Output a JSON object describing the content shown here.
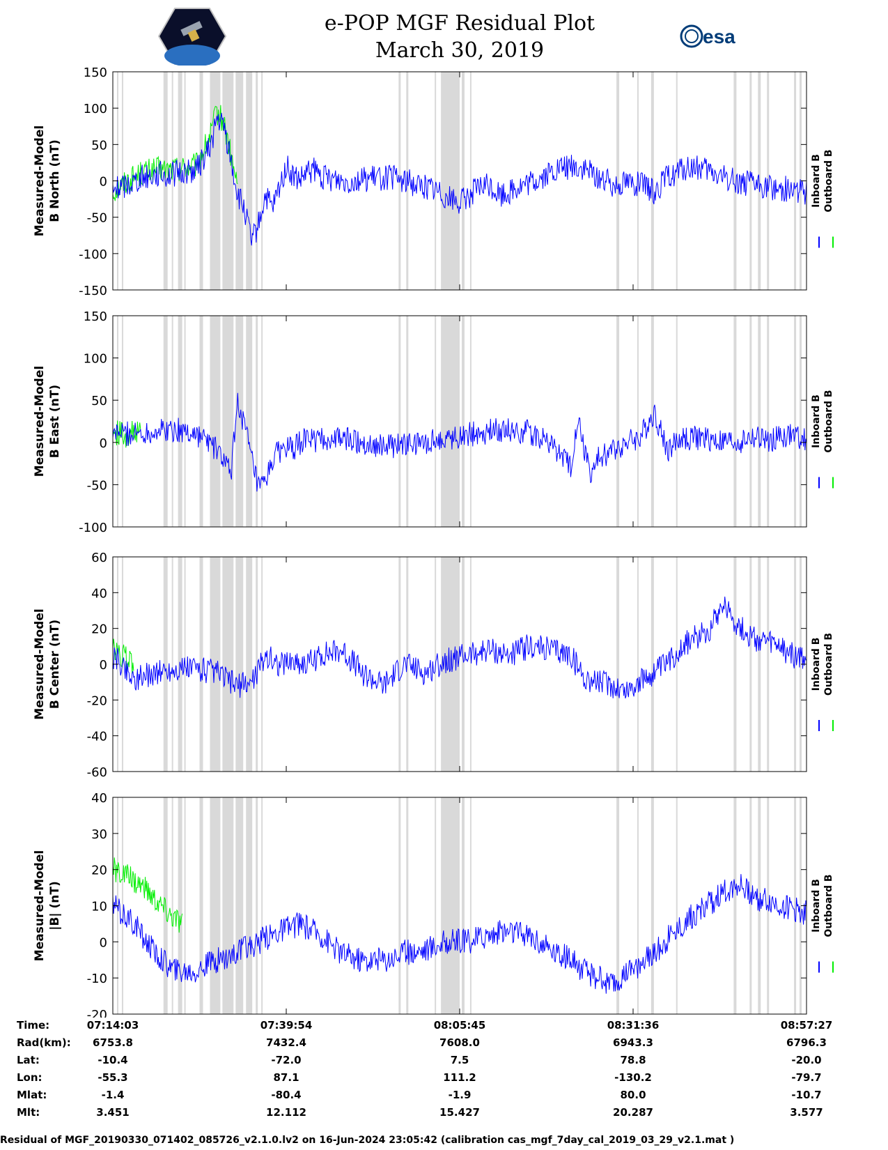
{
  "title": "e-POP MGF Residual Plot",
  "subtitle": "March 30, 2019",
  "colors": {
    "inboard": "#0000ff",
    "outboard": "#00ee00",
    "gap": "#d9d9d9"
  },
  "logos": {
    "left": "cassiope-mission-logo",
    "right": "esa-logo",
    "esa_text": "esa"
  },
  "chart_data": [
    {
      "type": "line",
      "ylabel_line1": "Measured-Model",
      "ylabel_line2": "B North (nT)",
      "ylim": [
        -150,
        150
      ],
      "yticks": [
        "150",
        "100",
        "50",
        "0",
        "-50",
        "-100",
        "-150"
      ],
      "legend": [
        "Inboard B",
        "Outboard B"
      ],
      "series": [
        {
          "name": "Inboard B",
          "color": "#0000ff",
          "x": [
            0,
            2,
            4,
            6,
            8,
            10,
            12,
            13,
            14,
            15,
            16,
            17,
            18,
            19,
            20,
            21,
            22,
            23,
            24,
            25,
            26,
            27,
            28,
            29,
            30,
            32,
            34,
            36,
            38,
            40,
            42,
            44,
            46,
            48,
            50,
            52,
            54,
            56,
            58,
            60,
            62,
            64,
            66,
            67,
            68,
            69,
            70,
            72,
            74,
            76,
            78,
            80,
            82,
            84,
            86,
            88,
            90,
            92,
            94,
            96,
            98,
            100
          ],
          "y": [
            -12,
            -5,
            5,
            10,
            8,
            12,
            15,
            30,
            45,
            85,
            75,
            30,
            -20,
            -40,
            -85,
            -60,
            -20,
            -40,
            -10,
            20,
            5,
            0,
            10,
            15,
            5,
            3,
            0,
            2,
            4,
            5,
            0,
            -5,
            -10,
            -20,
            -30,
            -15,
            -5,
            -20,
            -10,
            -5,
            5,
            15,
            20,
            18,
            15,
            10,
            5,
            -5,
            0,
            -5,
            -15,
            5,
            15,
            18,
            12,
            5,
            0,
            -5,
            -8,
            -10,
            -12,
            -15
          ]
        },
        {
          "name": "Outboard B",
          "color": "#00ee00",
          "x": [
            0,
            2,
            4,
            6,
            8,
            10,
            12,
            13,
            14,
            15,
            16,
            17,
            18
          ],
          "y": [
            -15,
            0,
            10,
            15,
            15,
            18,
            20,
            40,
            60,
            95,
            80,
            35,
            -10
          ]
        }
      ]
    },
    {
      "type": "line",
      "ylabel_line1": "Measured-Model",
      "ylabel_line2": "B East (nT)",
      "ylim": [
        -100,
        150
      ],
      "yticks": [
        "150",
        "100",
        "50",
        "0",
        "-50",
        "-100"
      ],
      "legend": [
        "Inboard B",
        "Outboard B"
      ],
      "series": [
        {
          "name": "Inboard B",
          "color": "#0000ff",
          "x": [
            0,
            3,
            6,
            9,
            12,
            14,
            16,
            17,
            18,
            19,
            20,
            21,
            22,
            23,
            24,
            25,
            26,
            27,
            28,
            30,
            33,
            36,
            40,
            44,
            48,
            52,
            56,
            60,
            63,
            66,
            67,
            68,
            69,
            70,
            72,
            74,
            76,
            78,
            80,
            82,
            84,
            86,
            88,
            90,
            92,
            94,
            96,
            98,
            100
          ],
          "y": [
            12,
            10,
            14,
            15,
            10,
            0,
            -20,
            -40,
            50,
            20,
            -20,
            -55,
            -50,
            -20,
            -10,
            -5,
            -10,
            0,
            5,
            2,
            5,
            0,
            -5,
            -2,
            5,
            10,
            15,
            12,
            0,
            -30,
            30,
            -10,
            -40,
            -20,
            -10,
            0,
            5,
            35,
            -10,
            5,
            5,
            3,
            0,
            0,
            5,
            3,
            5,
            8,
            5
          ]
        },
        {
          "name": "Outboard B",
          "color": "#00ee00",
          "x": [
            0,
            1,
            2,
            3,
            4
          ],
          "y": [
            10,
            12,
            8,
            12,
            10
          ]
        }
      ]
    },
    {
      "type": "line",
      "ylabel_line1": "Measured-Model",
      "ylabel_line2": "B Center (nT)",
      "ylim": [
        -60,
        60
      ],
      "yticks": [
        "60",
        "40",
        "20",
        "0",
        "-20",
        "-40",
        "-60"
      ],
      "legend": [
        "Inboard B",
        "Outboard B"
      ],
      "series": [
        {
          "name": "Inboard B",
          "color": "#0000ff",
          "x": [
            0,
            3,
            6,
            9,
            12,
            15,
            18,
            20,
            22,
            24,
            26,
            28,
            30,
            33,
            36,
            39,
            42,
            45,
            48,
            51,
            54,
            57,
            60,
            63,
            66,
            68,
            70,
            72,
            74,
            76,
            78,
            80,
            82,
            84,
            86,
            88,
            90,
            92,
            94,
            96,
            98,
            100
          ],
          "y": [
            5,
            -8,
            -5,
            -3,
            -2,
            -5,
            -12,
            -10,
            5,
            0,
            2,
            0,
            5,
            8,
            -5,
            -12,
            0,
            -5,
            2,
            5,
            8,
            5,
            10,
            8,
            5,
            -8,
            -10,
            -12,
            -15,
            -10,
            -5,
            0,
            10,
            15,
            20,
            35,
            22,
            15,
            12,
            10,
            5,
            2
          ]
        },
        {
          "name": "Outboard B",
          "color": "#00ee00",
          "x": [
            0,
            1,
            2,
            3
          ],
          "y": [
            8,
            5,
            3,
            0
          ]
        }
      ]
    },
    {
      "type": "line",
      "ylabel_line1": "Measured-Model",
      "ylabel_line2": "|B| (nT)",
      "ylim": [
        -20,
        40
      ],
      "yticks": [
        "40",
        "30",
        "20",
        "10",
        "0",
        "-10",
        "-20"
      ],
      "legend": [
        "Inboard B",
        "Outboard B"
      ],
      "series": [
        {
          "name": "Inboard B",
          "color": "#0000ff",
          "x": [
            0,
            3,
            6,
            9,
            12,
            15,
            18,
            21,
            24,
            27,
            30,
            33,
            36,
            39,
            42,
            45,
            48,
            51,
            54,
            57,
            60,
            63,
            66,
            68,
            70,
            72,
            75,
            78,
            81,
            84,
            87,
            90,
            93,
            96,
            100
          ],
          "y": [
            10,
            5,
            -3,
            -8,
            -8,
            -5,
            -3,
            0,
            3,
            5,
            2,
            -3,
            -5,
            -5,
            -3,
            -2,
            0,
            0,
            2,
            3,
            2,
            -2,
            -5,
            -8,
            -10,
            -12,
            -8,
            -3,
            3,
            8,
            12,
            16,
            12,
            10,
            8
          ]
        },
        {
          "name": "Outboard B",
          "color": "#00ee00",
          "x": [
            0,
            2,
            4,
            6,
            8,
            10
          ],
          "y": [
            20,
            18,
            16,
            12,
            8,
            5
          ]
        }
      ]
    }
  ],
  "gap_intervals": [
    [
      0.6,
      0.8
    ],
    [
      1.3,
      1.5
    ],
    [
      7.3,
      7.9
    ],
    [
      8.5,
      8.7
    ],
    [
      9.4,
      10.0
    ],
    [
      10.3,
      10.5
    ],
    [
      12.5,
      13.0
    ],
    [
      14.0,
      15.5
    ],
    [
      15.8,
      17.4
    ],
    [
      17.7,
      18.8
    ],
    [
      19.2,
      20.1
    ],
    [
      20.6,
      20.9
    ],
    [
      21.4,
      21.6
    ],
    [
      41.2,
      41.5
    ],
    [
      42.3,
      42.6
    ],
    [
      46.4,
      46.6
    ],
    [
      47.3,
      50.0
    ],
    [
      50.3,
      50.7
    ],
    [
      51.5,
      51.7
    ],
    [
      72.6,
      73.0
    ],
    [
      75.6,
      75.8
    ],
    [
      77.6,
      78.0
    ],
    [
      81.2,
      81.4
    ],
    [
      89.5,
      89.9
    ],
    [
      91.8,
      92.1
    ],
    [
      93.0,
      93.4
    ],
    [
      94.3,
      94.6
    ],
    [
      98.2,
      98.5
    ],
    [
      99.0,
      99.3
    ]
  ],
  "footer": {
    "row_labels": [
      "Time:",
      "Rad(km):",
      "Lat:",
      "Lon:",
      "Mlat:",
      "Mlt:"
    ],
    "columns": [
      {
        "time": "07:14:03",
        "rad": "6753.8",
        "lat": "-10.4",
        "lon": "-55.3",
        "mlat": "-1.4",
        "mlt": "3.451"
      },
      {
        "time": "07:39:54",
        "rad": "7432.4",
        "lat": "-72.0",
        "lon": "87.1",
        "mlat": "-80.4",
        "mlt": "12.112"
      },
      {
        "time": "08:05:45",
        "rad": "7608.0",
        "lat": "7.5",
        "lon": "111.2",
        "mlat": "-1.9",
        "mlt": "15.427"
      },
      {
        "time": "08:31:36",
        "rad": "6943.3",
        "lat": "78.8",
        "lon": "-130.2",
        "mlat": "80.0",
        "mlt": "20.287"
      },
      {
        "time": "08:57:27",
        "rad": "6796.3",
        "lat": "-20.0",
        "lon": "-79.7",
        "mlat": "-10.7",
        "mlt": "3.577"
      }
    ]
  },
  "caption": "Residual of MGF_20190330_071402_085726_v2.1.0.lv2 on 16-Jun-2024 23:05:42 (calibration cas_mgf_7day_cal_2019_03_29_v2.1.mat )"
}
